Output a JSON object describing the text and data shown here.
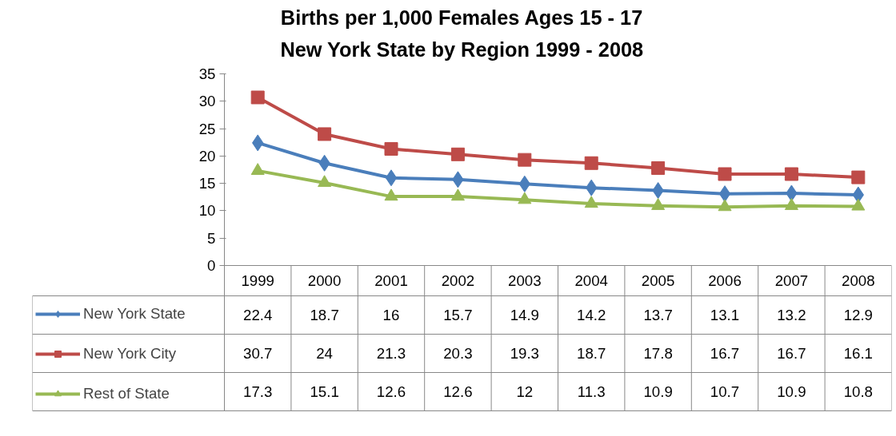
{
  "chart_data": {
    "type": "line",
    "title": "Births per 1,000 Females Ages 15 - 17",
    "subtitle": "New York State by Region 1999 - 2008",
    "categories": [
      "1999",
      "2000",
      "2001",
      "2002",
      "2003",
      "2004",
      "2005",
      "2006",
      "2007",
      "2008"
    ],
    "series": [
      {
        "name": "New York State",
        "color": "#4a7ebb",
        "marker": "diamond",
        "values": [
          22.4,
          18.7,
          16,
          15.7,
          14.9,
          14.2,
          13.7,
          13.1,
          13.2,
          12.9
        ]
      },
      {
        "name": "New York City",
        "color": "#be4b48",
        "marker": "square",
        "values": [
          30.7,
          24,
          21.3,
          20.3,
          19.3,
          18.7,
          17.8,
          16.7,
          16.7,
          16.1
        ]
      },
      {
        "name": "Rest of State",
        "color": "#98b954",
        "marker": "triangle",
        "values": [
          17.3,
          15.1,
          12.6,
          12.6,
          12,
          11.3,
          10.9,
          10.7,
          10.9,
          10.8
        ]
      }
    ],
    "ylim": [
      0,
      35
    ],
    "yticks": [
      0,
      5,
      10,
      15,
      20,
      25,
      30,
      35
    ],
    "grid": false,
    "legend": "bottom",
    "data_labels": true,
    "line_style": "solid"
  }
}
